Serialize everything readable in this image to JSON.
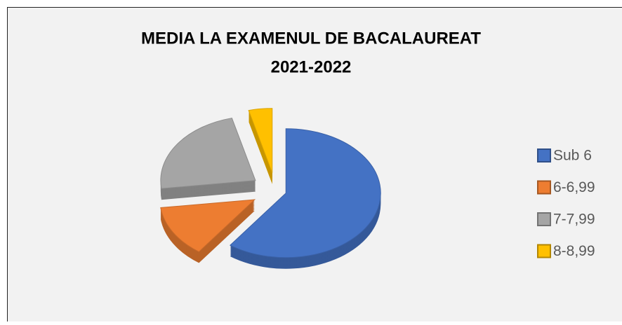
{
  "chart_data": {
    "type": "pie",
    "title": [
      "MEDIA LA EXAMENUL DE BACALAUREAT",
      "2021-2022"
    ],
    "categories": [
      "Sub 6",
      "6-6,99",
      "7-7,99",
      "8-8,99"
    ],
    "values": [
      60,
      13,
      23,
      4
    ],
    "colors": [
      "#4472c4",
      "#ed7d31",
      "#a5a5a5",
      "#ffc000"
    ],
    "legend": "right"
  }
}
